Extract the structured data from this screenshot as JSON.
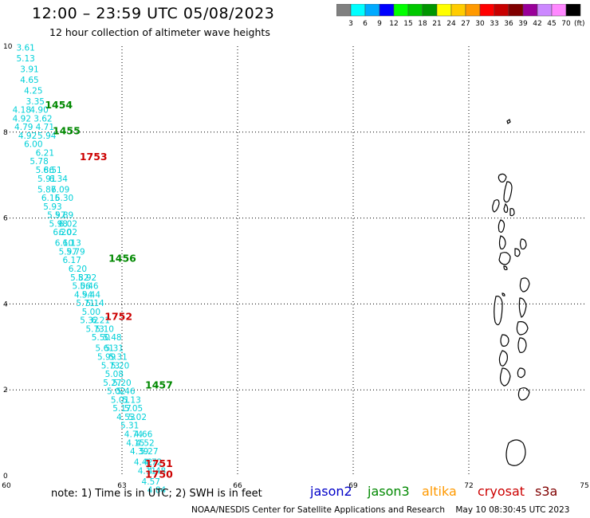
{
  "header": {
    "title": "12:00 – 23:59 UTC 05/08/2023",
    "subtitle": "12 hour collection of altimeter wave heights"
  },
  "colorbar": {
    "colors": [
      "#808080",
      "#00ffff",
      "#00aaff",
      "#0000ff",
      "#00ff00",
      "#00c800",
      "#009600",
      "#ffff00",
      "#ffcc00",
      "#ff9900",
      "#ff0000",
      "#c80000",
      "#800000",
      "#990099",
      "#cc88ff",
      "#ff88ff",
      "#000000"
    ],
    "labels": [
      "3",
      "6",
      "9",
      "12",
      "15",
      "18",
      "21",
      "24",
      "27",
      "30",
      "33",
      "36",
      "39",
      "42",
      "45",
      "70"
    ],
    "unit": "(ft)"
  },
  "axes": {
    "x_ticks": [
      "60",
      "63",
      "66",
      "69",
      "72",
      "75"
    ],
    "y_ticks": [
      "0",
      "2",
      "4",
      "6",
      "8",
      "10"
    ],
    "grid": "dotted"
  },
  "chart_data": {
    "type": "scatter",
    "xlim": [
      60,
      75
    ],
    "ylim": [
      0,
      10
    ],
    "wave_heights_ft": [
      {
        "lon": 60.5,
        "lat": 9.9,
        "v": "3.61"
      },
      {
        "lon": 60.5,
        "lat": 9.65,
        "v": "5.13"
      },
      {
        "lon": 60.6,
        "lat": 9.4,
        "v": "3.91"
      },
      {
        "lon": 60.6,
        "lat": 9.15,
        "v": "4.65"
      },
      {
        "lon": 60.7,
        "lat": 8.9,
        "v": "4.25"
      },
      {
        "lon": 60.75,
        "lat": 8.65,
        "v": "3.35"
      },
      {
        "lon": 60.4,
        "lat": 8.45,
        "v": "4.18"
      },
      {
        "lon": 60.85,
        "lat": 8.45,
        "v": "4.90"
      },
      {
        "lon": 60.4,
        "lat": 8.25,
        "v": "4.92"
      },
      {
        "lon": 60.95,
        "lat": 8.25,
        "v": "3.62"
      },
      {
        "lon": 60.45,
        "lat": 8.05,
        "v": "4.79"
      },
      {
        "lon": 61.0,
        "lat": 8.05,
        "v": "4.71"
      },
      {
        "lon": 60.55,
        "lat": 7.85,
        "v": "4.92"
      },
      {
        "lon": 61.05,
        "lat": 7.85,
        "v": "5.94"
      },
      {
        "lon": 60.7,
        "lat": 7.65,
        "v": "6.00"
      },
      {
        "lon": 61.0,
        "lat": 7.45,
        "v": "6.21"
      },
      {
        "lon": 60.85,
        "lat": 7.25,
        "v": "5.78"
      },
      {
        "lon": 61.0,
        "lat": 7.05,
        "v": "5.86"
      },
      {
        "lon": 61.2,
        "lat": 7.05,
        "v": "6.51"
      },
      {
        "lon": 61.05,
        "lat": 6.85,
        "v": "5.91"
      },
      {
        "lon": 61.35,
        "lat": 6.85,
        "v": "6.34"
      },
      {
        "lon": 61.05,
        "lat": 6.6,
        "v": "5.87"
      },
      {
        "lon": 61.4,
        "lat": 6.6,
        "v": "6.09"
      },
      {
        "lon": 61.15,
        "lat": 6.4,
        "v": "6.15"
      },
      {
        "lon": 61.5,
        "lat": 6.4,
        "v": "6.30"
      },
      {
        "lon": 61.2,
        "lat": 6.2,
        "v": "5.93"
      },
      {
        "lon": 61.3,
        "lat": 6.0,
        "v": "5.97"
      },
      {
        "lon": 61.5,
        "lat": 6.0,
        "v": "5.89"
      },
      {
        "lon": 61.35,
        "lat": 5.8,
        "v": "5.98"
      },
      {
        "lon": 61.6,
        "lat": 5.8,
        "v": "6.02"
      },
      {
        "lon": 61.45,
        "lat": 5.6,
        "v": "6.20"
      },
      {
        "lon": 61.6,
        "lat": 5.6,
        "v": "6.02"
      },
      {
        "lon": 61.5,
        "lat": 5.35,
        "v": "6.10"
      },
      {
        "lon": 61.7,
        "lat": 5.35,
        "v": "6.13"
      },
      {
        "lon": 61.6,
        "lat": 5.15,
        "v": "5.97"
      },
      {
        "lon": 61.8,
        "lat": 5.15,
        "v": "5.79"
      },
      {
        "lon": 61.7,
        "lat": 4.95,
        "v": "6.17"
      },
      {
        "lon": 61.85,
        "lat": 4.75,
        "v": "6.20"
      },
      {
        "lon": 61.9,
        "lat": 4.55,
        "v": "5.82"
      },
      {
        "lon": 62.1,
        "lat": 4.55,
        "v": "5.92"
      },
      {
        "lon": 61.95,
        "lat": 4.35,
        "v": "5.06"
      },
      {
        "lon": 62.15,
        "lat": 4.35,
        "v": "5.46"
      },
      {
        "lon": 62.0,
        "lat": 4.15,
        "v": "4.94"
      },
      {
        "lon": 62.2,
        "lat": 4.15,
        "v": "5.44"
      },
      {
        "lon": 62.05,
        "lat": 3.95,
        "v": "5.71"
      },
      {
        "lon": 62.3,
        "lat": 3.95,
        "v": "5.14"
      },
      {
        "lon": 62.2,
        "lat": 3.75,
        "v": "5.00"
      },
      {
        "lon": 62.15,
        "lat": 3.55,
        "v": "5.32"
      },
      {
        "lon": 62.45,
        "lat": 3.55,
        "v": "6.21"
      },
      {
        "lon": 62.3,
        "lat": 3.35,
        "v": "5.73"
      },
      {
        "lon": 62.55,
        "lat": 3.35,
        "v": "5.10"
      },
      {
        "lon": 62.45,
        "lat": 3.15,
        "v": "5.50"
      },
      {
        "lon": 62.75,
        "lat": 3.15,
        "v": "5.48"
      },
      {
        "lon": 62.55,
        "lat": 2.9,
        "v": "5.61"
      },
      {
        "lon": 62.8,
        "lat": 2.9,
        "v": "5.31"
      },
      {
        "lon": 62.6,
        "lat": 2.7,
        "v": "5.99"
      },
      {
        "lon": 62.9,
        "lat": 2.7,
        "v": "5.31"
      },
      {
        "lon": 62.7,
        "lat": 2.5,
        "v": "5.73"
      },
      {
        "lon": 62.95,
        "lat": 2.5,
        "v": "5.20"
      },
      {
        "lon": 62.8,
        "lat": 2.3,
        "v": "5.08"
      },
      {
        "lon": 62.75,
        "lat": 2.1,
        "v": "5.27"
      },
      {
        "lon": 63.0,
        "lat": 2.1,
        "v": "5.20"
      },
      {
        "lon": 62.85,
        "lat": 1.9,
        "v": "5.02"
      },
      {
        "lon": 63.1,
        "lat": 1.9,
        "v": "5.46"
      },
      {
        "lon": 62.95,
        "lat": 1.7,
        "v": "5.01"
      },
      {
        "lon": 63.25,
        "lat": 1.7,
        "v": "5.13"
      },
      {
        "lon": 63.0,
        "lat": 1.5,
        "v": "5.17"
      },
      {
        "lon": 63.3,
        "lat": 1.5,
        "v": "5.05"
      },
      {
        "lon": 63.1,
        "lat": 1.3,
        "v": "4.53"
      },
      {
        "lon": 63.4,
        "lat": 1.3,
        "v": "5.02"
      },
      {
        "lon": 63.2,
        "lat": 1.1,
        "v": "5.31"
      },
      {
        "lon": 63.3,
        "lat": 0.9,
        "v": "4.74"
      },
      {
        "lon": 63.55,
        "lat": 0.9,
        "v": "4.66"
      },
      {
        "lon": 63.35,
        "lat": 0.7,
        "v": "4.15"
      },
      {
        "lon": 63.6,
        "lat": 0.7,
        "v": "4.52"
      },
      {
        "lon": 63.45,
        "lat": 0.5,
        "v": "4.39"
      },
      {
        "lon": 63.7,
        "lat": 0.5,
        "v": "5.27"
      },
      {
        "lon": 63.55,
        "lat": 0.25,
        "v": "4.42"
      },
      {
        "lon": 63.8,
        "lat": 0.25,
        "v": "4.72"
      },
      {
        "lon": 63.65,
        "lat": 0.05,
        "v": "4.11"
      },
      {
        "lon": 63.9,
        "lat": 0.05,
        "v": "4.48"
      },
      {
        "lon": 63.75,
        "lat": -0.2,
        "v": "4.57"
      },
      {
        "lon": 63.9,
        "lat": -0.4,
        "v": "4.84"
      }
    ],
    "pass_times": [
      {
        "lon": 61.0,
        "lat": 8.55,
        "text": "1454",
        "satellite": "jason3"
      },
      {
        "lon": 61.2,
        "lat": 7.95,
        "text": "1455",
        "satellite": "jason3"
      },
      {
        "lon": 61.9,
        "lat": 7.35,
        "text": "1753",
        "satellite": "cryosat"
      },
      {
        "lon": 62.65,
        "lat": 4.98,
        "text": "1456",
        "satellite": "jason3"
      },
      {
        "lon": 62.55,
        "lat": 3.63,
        "text": "1752",
        "satellite": "cryosat"
      },
      {
        "lon": 63.6,
        "lat": 2.03,
        "text": "1457",
        "satellite": "jason3"
      },
      {
        "lon": 63.6,
        "lat": 0.2,
        "text": "1751",
        "satellite": "cryosat"
      },
      {
        "lon": 63.6,
        "lat": -0.05,
        "text": "1750",
        "satellite": "cryosat"
      }
    ]
  },
  "satellite_colors": {
    "jason2": "#0000c8",
    "jason3": "#008800",
    "altika": "#ff9900",
    "cryosat": "#cc0000",
    "s3a": "#800000"
  },
  "legend": {
    "note": "note: 1) Time is in UTC; 2) SWH is in feet",
    "items": [
      {
        "key": "jason2",
        "label": "jason2",
        "color": "#0000c8"
      },
      {
        "key": "jason3",
        "label": "jason3",
        "color": "#008800"
      },
      {
        "key": "altika",
        "label": "altika",
        "color": "#ff9900"
      },
      {
        "key": "cryosat",
        "label": "cryosat",
        "color": "#cc0000"
      },
      {
        "key": "s3a",
        "label": "s3a",
        "color": "#800000"
      }
    ]
  },
  "footer": {
    "credit": "NOAA/NESDIS Center for Satellite Applications and Research",
    "timestamp": "May 10 08:30:45 UTC 2023"
  }
}
